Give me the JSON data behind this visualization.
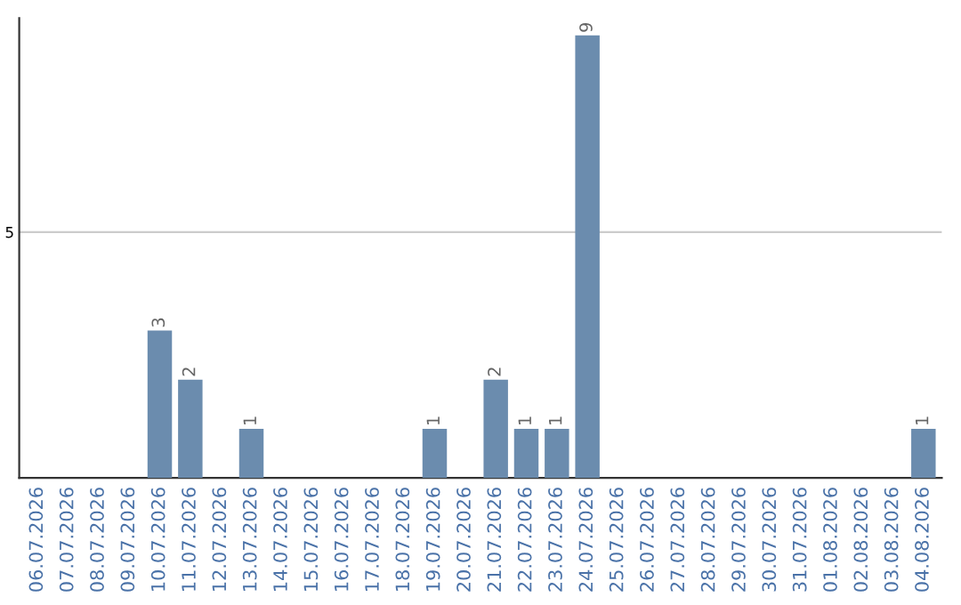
{
  "chart_data": {
    "type": "bar",
    "categories": [
      "06.07.2026",
      "07.07.2026",
      "08.07.2026",
      "09.07.2026",
      "10.07.2026",
      "11.07.2026",
      "12.07.2026",
      "13.07.2026",
      "14.07.2026",
      "15.07.2026",
      "16.07.2026",
      "17.07.2026",
      "18.07.2026",
      "19.07.2026",
      "20.07.2026",
      "21.07.2026",
      "22.07.2026",
      "23.07.2026",
      "24.07.2026",
      "25.07.2026",
      "26.07.2026",
      "27.07.2026",
      "28.07.2026",
      "29.07.2026",
      "30.07.2026",
      "31.07.2026",
      "01.08.2026",
      "02.08.2026",
      "03.08.2026",
      "04.08.2026"
    ],
    "values": [
      0,
      0,
      0,
      0,
      3,
      2,
      0,
      1,
      0,
      0,
      0,
      0,
      0,
      1,
      0,
      2,
      1,
      1,
      9,
      0,
      0,
      0,
      0,
      0,
      0,
      0,
      0,
      0,
      0,
      1
    ],
    "value_labels": [
      null,
      null,
      null,
      null,
      "3",
      "2",
      null,
      "1",
      null,
      null,
      null,
      null,
      null,
      "1",
      null,
      "2",
      "1",
      "1",
      "9",
      null,
      null,
      null,
      null,
      null,
      null,
      null,
      null,
      null,
      null,
      "1"
    ],
    "color": "#6b8cae",
    "ylim": [
      0,
      9.35
    ],
    "yticks": [
      5
    ],
    "grid": "y",
    "legend": false
  }
}
